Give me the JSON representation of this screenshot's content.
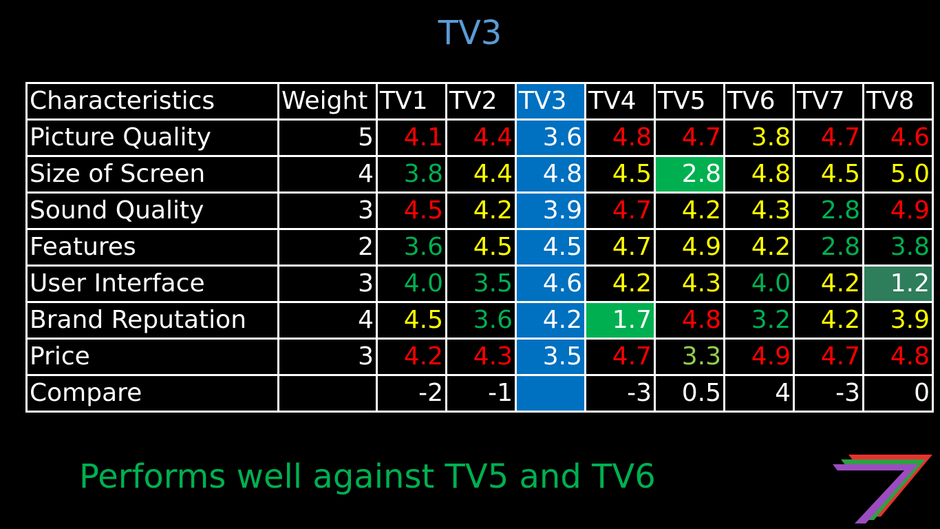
{
  "title": "TV3",
  "table": {
    "header": {
      "characteristic": "Characteristics",
      "weight": "Weight",
      "tvs": [
        "TV1",
        "TV2",
        "TV3",
        "TV4",
        "TV5",
        "TV6",
        "TV7",
        "TV8"
      ]
    },
    "selected_column": "TV3",
    "rows": [
      {
        "label": "Picture Quality",
        "weight": "5",
        "values": [
          "4.1",
          "4.4",
          "3.6",
          "4.8",
          "4.7",
          "3.8",
          "4.7",
          "4.6"
        ],
        "colors": [
          "red",
          "red",
          "white",
          "red",
          "red",
          "yellow",
          "red",
          "red"
        ]
      },
      {
        "label": "Size of Screen",
        "weight": "4",
        "values": [
          "3.8",
          "4.4",
          "4.8",
          "4.5",
          "2.8",
          "4.8",
          "4.5",
          "5.0"
        ],
        "colors": [
          "green",
          "yellow",
          "white",
          "yellow",
          "white-on-green",
          "yellow",
          "yellow",
          "yellow"
        ]
      },
      {
        "label": "Sound Quality",
        "weight": "3",
        "values": [
          "4.5",
          "4.2",
          "3.9",
          "4.7",
          "4.2",
          "4.3",
          "2.8",
          "4.9"
        ],
        "colors": [
          "red",
          "yellow",
          "white",
          "red",
          "yellow",
          "yellow",
          "green",
          "red"
        ]
      },
      {
        "label": "Features",
        "weight": "2",
        "values": [
          "3.6",
          "4.5",
          "4.5",
          "4.7",
          "4.9",
          "4.2",
          "2.8",
          "3.8"
        ],
        "colors": [
          "green",
          "yellow",
          "white",
          "yellow",
          "yellow",
          "yellow",
          "green",
          "green"
        ]
      },
      {
        "label": "User Interface",
        "weight": "3",
        "values": [
          "4.0",
          "3.5",
          "4.6",
          "4.2",
          "4.3",
          "4.0",
          "4.2",
          "1.2"
        ],
        "colors": [
          "green",
          "green",
          "white",
          "yellow",
          "yellow",
          "green",
          "yellow",
          "white-on-teal"
        ]
      },
      {
        "label": "Brand Reputation",
        "weight": "4",
        "values": [
          "4.5",
          "3.6",
          "4.2",
          "1.7",
          "4.8",
          "3.2",
          "4.2",
          "3.9"
        ],
        "colors": [
          "yellow",
          "green",
          "white",
          "white-on-green",
          "red",
          "green",
          "yellow",
          "yellow"
        ]
      },
      {
        "label": "Price",
        "weight": "3",
        "values": [
          "4.2",
          "4.3",
          "3.5",
          "4.7",
          "3.3",
          "4.9",
          "4.7",
          "4.8"
        ],
        "colors": [
          "red",
          "red",
          "white",
          "red",
          "lgreen",
          "red",
          "red",
          "red"
        ]
      }
    ],
    "compare": {
      "label": "Compare",
      "weight": "",
      "values": [
        "-2",
        "-1",
        "",
        "-3",
        "0.5",
        "4",
        "-3",
        "0"
      ]
    }
  },
  "colors": {
    "title": "#5b9bd5",
    "selected_column": "#0070c0",
    "red": "#ff0000",
    "yellow": "#ffff00",
    "green": "#00b050",
    "light_green": "#92d050",
    "teal_highlight": "#2e7d5b",
    "footer": "#00b050"
  },
  "footer": "Performs well against TV5 and TV6",
  "logo": "stacked-seven-logo"
}
